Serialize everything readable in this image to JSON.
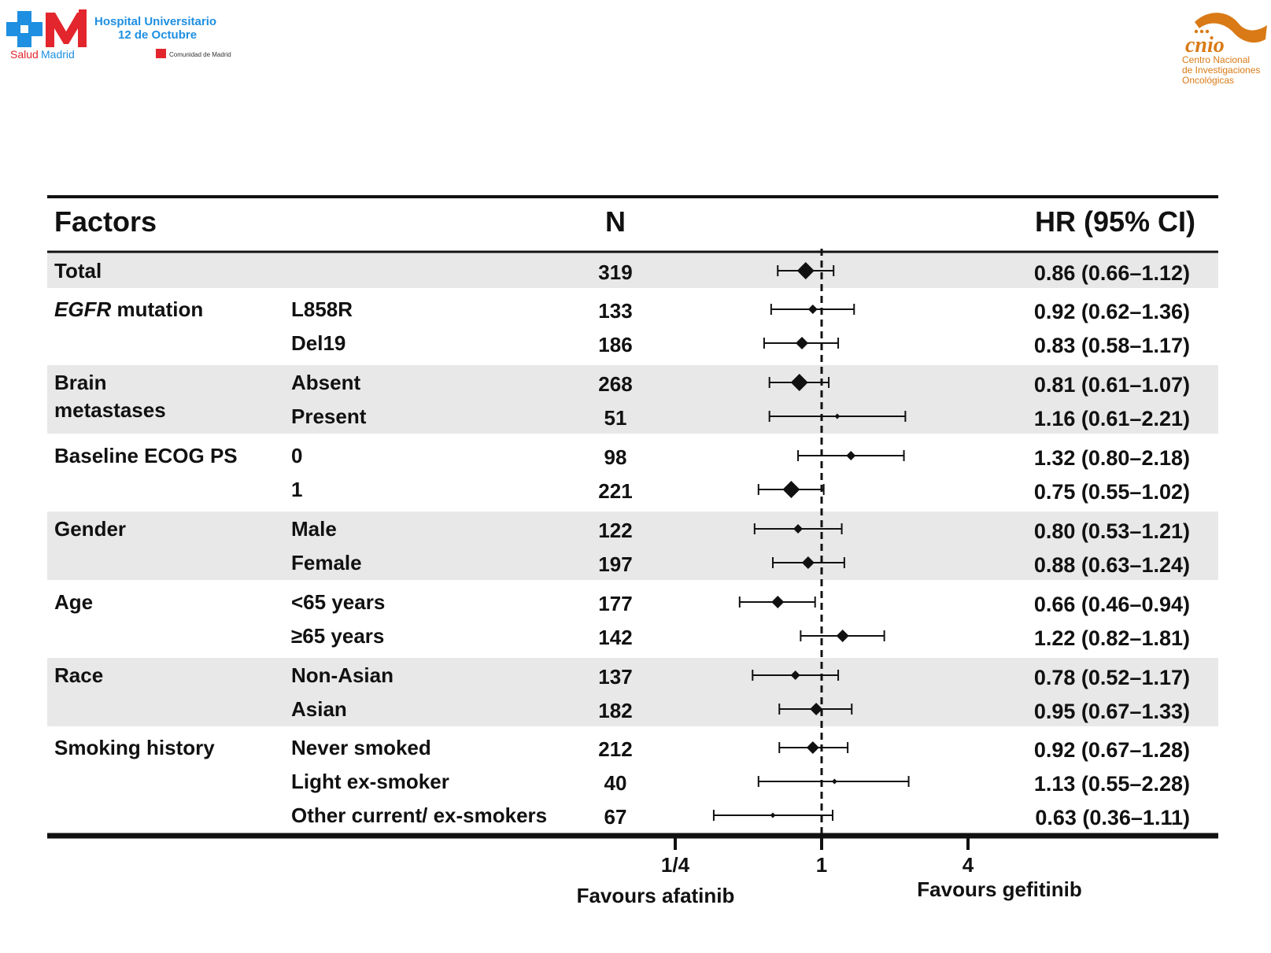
{
  "logos": {
    "hospital_line1": "Hospital Universitario",
    "hospital_line2": "12 de Octubre",
    "salud": "Salud",
    "madrid": "Madrid",
    "comunidad": "Comunidad de Madrid",
    "cnio": "cnio",
    "cnio_line1": "Centro Nacional",
    "cnio_line2": "de Investigaciones",
    "cnio_line3": "Oncológicas",
    "colors": {
      "hospital_blue": "#1e8fe1",
      "madrid_red": "#e3262d",
      "cnio_orange": "#d97a16"
    }
  },
  "table": {
    "headers": {
      "factors": "Factors",
      "n": "N",
      "hr": "HR (95% CI)"
    },
    "band_color": "#e8e8e8"
  },
  "axis": {
    "ticks": [
      "1/4",
      "1",
      "4"
    ],
    "favours_left": "Favours afatinib",
    "favours_right": "Favours gefitinib"
  },
  "chart_data": {
    "type": "forest",
    "scale": "log",
    "reference_line": 1,
    "xlim": [
      0.25,
      4
    ],
    "rows": [
      {
        "factor": "Total",
        "factor_italic": "",
        "factor2": "",
        "subgroup": "",
        "n": "319",
        "hr": 0.86,
        "lo": 0.66,
        "hi": 1.12,
        "label": "0.86 (0.66–1.12)",
        "marker": "large"
      },
      {
        "factor": " mutation",
        "factor_italic": "EGFR",
        "factor2": "",
        "subgroup": "L858R",
        "n": "133",
        "hr": 0.92,
        "lo": 0.62,
        "hi": 1.36,
        "label": "0.92 (0.62–1.36)",
        "marker": "small"
      },
      {
        "factor": "",
        "factor_italic": "",
        "factor2": "",
        "subgroup": "Del19",
        "n": "186",
        "hr": 0.83,
        "lo": 0.58,
        "hi": 1.17,
        "label": "0.83 (0.58–1.17)",
        "marker": "medium"
      },
      {
        "factor": "Brain",
        "factor_italic": "",
        "factor2": "metastases",
        "subgroup": "Absent",
        "n": "268",
        "hr": 0.81,
        "lo": 0.61,
        "hi": 1.07,
        "label": "0.81 (0.61–1.07)",
        "marker": "large"
      },
      {
        "factor": "",
        "factor_italic": "",
        "factor2": "",
        "subgroup": "Present",
        "n": "51",
        "hr": 1.16,
        "lo": 0.61,
        "hi": 2.21,
        "label": "1.16 (0.61–2.21)",
        "marker": "tiny"
      },
      {
        "factor": "Baseline ECOG PS",
        "factor_italic": "",
        "factor2": "",
        "subgroup": "0",
        "n": "98",
        "hr": 1.32,
        "lo": 0.8,
        "hi": 2.18,
        "label": "1.32 (0.80–2.18)",
        "marker": "small"
      },
      {
        "factor": "",
        "factor_italic": "",
        "factor2": "",
        "subgroup": "1",
        "n": "221",
        "hr": 0.75,
        "lo": 0.55,
        "hi": 1.02,
        "label": "0.75 (0.55–1.02)",
        "marker": "large"
      },
      {
        "factor": "Gender",
        "factor_italic": "",
        "factor2": "",
        "subgroup": "Male",
        "n": "122",
        "hr": 0.8,
        "lo": 0.53,
        "hi": 1.21,
        "label": "0.80 (0.53–1.21)",
        "marker": "small"
      },
      {
        "factor": "",
        "factor_italic": "",
        "factor2": "",
        "subgroup": "Female",
        "n": "197",
        "hr": 0.88,
        "lo": 0.63,
        "hi": 1.24,
        "label": "0.88 (0.63–1.24)",
        "marker": "medium"
      },
      {
        "factor": "Age",
        "factor_italic": "",
        "factor2": "",
        "subgroup": "<65 years",
        "n": "177",
        "hr": 0.66,
        "lo": 0.46,
        "hi": 0.94,
        "label": "0.66 (0.46–0.94)",
        "marker": "medium"
      },
      {
        "factor": "",
        "factor_italic": "",
        "factor2": "",
        "subgroup": "≥65 years",
        "n": "142",
        "hr": 1.22,
        "lo": 0.82,
        "hi": 1.81,
        "label": "1.22 (0.82–1.81)",
        "marker": "medium"
      },
      {
        "factor": "Race",
        "factor_italic": "",
        "factor2": "",
        "subgroup": "Non-Asian",
        "n": "137",
        "hr": 0.78,
        "lo": 0.52,
        "hi": 1.17,
        "label": "0.78 (0.52–1.17)",
        "marker": "small"
      },
      {
        "factor": "",
        "factor_italic": "",
        "factor2": "",
        "subgroup": "Asian",
        "n": "182",
        "hr": 0.95,
        "lo": 0.67,
        "hi": 1.33,
        "label": "0.95 (0.67–1.33)",
        "marker": "medium"
      },
      {
        "factor": "Smoking history",
        "factor_italic": "",
        "factor2": "",
        "subgroup": "Never smoked",
        "n": "212",
        "hr": 0.92,
        "lo": 0.67,
        "hi": 1.28,
        "label": "0.92 (0.67–1.28)",
        "marker": "medium"
      },
      {
        "factor": "",
        "factor_italic": "",
        "factor2": "",
        "subgroup": "Light ex-smoker",
        "n": "40",
        "hr": 1.13,
        "lo": 0.55,
        "hi": 2.28,
        "label": "1.13 (0.55–2.28)",
        "marker": "tiny"
      },
      {
        "factor": "",
        "factor_italic": "",
        "factor2": "",
        "subgroup": "Other current/ ex-smokers",
        "n": "67",
        "hr": 0.63,
        "lo": 0.36,
        "hi": 1.11,
        "label": "0.63 (0.36–1.11)",
        "marker": "tiny"
      }
    ]
  }
}
